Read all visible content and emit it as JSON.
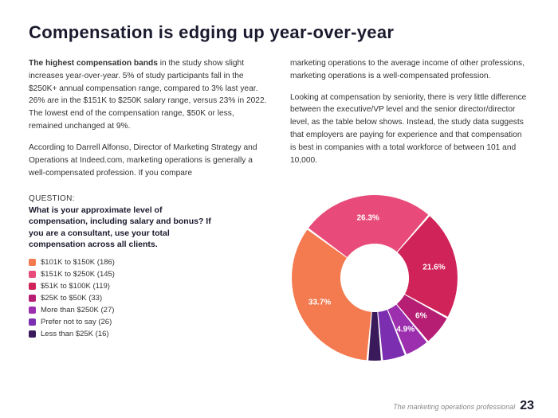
{
  "title": "Compensation is edging up year-over-year",
  "body": {
    "col1": {
      "p1_a": "The highest compensation bands",
      "p1_b": " in the study show slight increases year-over-year. 5% of study participants fall in the $250K+ annual compensation range, compared to 3% last year. 26% are in the $151K to $250K salary range, versus 23% in 2022. The lowest end of the compensation range, $50K or less, remained unchanged at 9%.",
      "p2": "According to Darrell Alfonso, Director of Marketing Strategy and Operations at Indeed.com, marketing operations is generally a well-compensated profession. If you compare"
    },
    "col2": {
      "p1": "marketing operations to the average income of other professions, marketing operations is a well-compensated profession.",
      "p2": "Looking at compensation by seniority, there is very little difference between the executive/VP level and the senior director/director level, as the table below shows. Instead, the study data suggests that employers are paying for experience and that compensation is best in companies with a total workforce of between 101 and 10,000."
    }
  },
  "question": {
    "label": "QUESTION:",
    "text": "What is your approximate level of compensation, including salary and bonus? If you are a consultant, use your total compensation across all clients."
  },
  "chart": {
    "type": "donut",
    "inner_hole_ratio": 0.41,
    "gap_deg": 1.4,
    "start_angle_deg": -175,
    "background_color": "#ffffff",
    "slices": [
      {
        "label": "$101K to $150K (186)",
        "value": 33.7,
        "color": "#f47a4f",
        "pct_text": "33.7%",
        "show_pct": true
      },
      {
        "label": "$151K to $250K (145)",
        "value": 26.3,
        "color": "#e84b7a",
        "pct_text": "26.3%",
        "show_pct": true
      },
      {
        "label": "$51K to $100K (119)",
        "value": 21.6,
        "color": "#d0235a",
        "pct_text": "21.6%",
        "show_pct": true
      },
      {
        "label": "$25K to $50K (33)",
        "value": 6.0,
        "color": "#b51e73",
        "pct_text": "6%",
        "show_pct": true
      },
      {
        "label": "More than $250K (27)",
        "value": 4.9,
        "color": "#9b2fae",
        "pct_text": "4.9%",
        "show_pct": true
      },
      {
        "label": "Prefer not to say (26)",
        "value": 4.7,
        "color": "#7b2fb0",
        "pct_text": "",
        "show_pct": false
      },
      {
        "label": "Less than $25K (16)",
        "value": 2.8,
        "color": "#3a1a5a",
        "pct_text": "",
        "show_pct": false
      }
    ],
    "label_fontsize": 10,
    "label_color": "#ffffff",
    "label_radius_ratio": 0.72
  },
  "footer": {
    "text": "The marketing operations professional",
    "page": "23"
  }
}
